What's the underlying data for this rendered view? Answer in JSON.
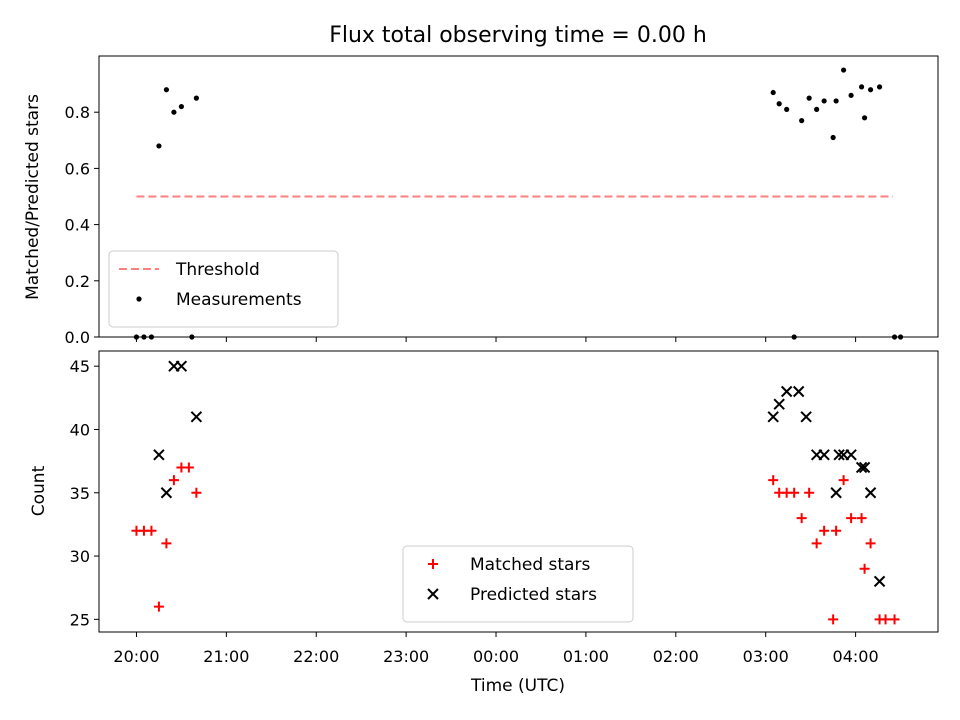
{
  "chart_data": {
    "title": "Flux total observing time = 0.00 h",
    "x_axis": {
      "label": "Time (UTC)",
      "unit": "minutes after 20:00 UTC",
      "ticks": [
        {
          "value": 0,
          "label": "20:00"
        },
        {
          "value": 60,
          "label": "21:00"
        },
        {
          "value": 120,
          "label": "22:00"
        },
        {
          "value": 180,
          "label": "23:00"
        },
        {
          "value": 240,
          "label": "00:00"
        },
        {
          "value": 300,
          "label": "01:00"
        },
        {
          "value": 360,
          "label": "02:00"
        },
        {
          "value": 420,
          "label": "03:00"
        },
        {
          "value": 480,
          "label": "04:00"
        }
      ],
      "xlim": [
        -25,
        535
      ]
    },
    "charts": [
      {
        "type": "scatter",
        "ylabel": "Matched/Predicted stars",
        "ylim": [
          0,
          1.0
        ],
        "yticks": [
          0.0,
          0.2,
          0.4,
          0.6,
          0.8
        ],
        "ytick_labels": [
          "0.0",
          "0.2",
          "0.4",
          "0.6",
          "0.8"
        ],
        "legend": {
          "placement": "lower-left"
        },
        "threshold": {
          "name": "Threshold",
          "y": 0.5,
          "x_range": [
            0,
            505
          ],
          "color": "#ff7f7f",
          "style": "dashed"
        },
        "series": [
          {
            "name": "Measurements",
            "color": "#000000",
            "marker": "dot",
            "points": [
              [
                0,
                0.0
              ],
              [
                5,
                0.0
              ],
              [
                10,
                0.0
              ],
              [
                15,
                0.68
              ],
              [
                20,
                0.88
              ],
              [
                25,
                0.8
              ],
              [
                30,
                0.82
              ],
              [
                40,
                0.85
              ],
              [
                37,
                0.0
              ],
              [
                425,
                0.87
              ],
              [
                429,
                0.83
              ],
              [
                434,
                0.81
              ],
              [
                439,
                0.0
              ],
              [
                444,
                0.77
              ],
              [
                449,
                0.85
              ],
              [
                454,
                0.81
              ],
              [
                459,
                0.84
              ],
              [
                465,
                0.71
              ],
              [
                467,
                0.84
              ],
              [
                472,
                0.95
              ],
              [
                477,
                0.86
              ],
              [
                484,
                0.89
              ],
              [
                486,
                0.78
              ],
              [
                490,
                0.88
              ],
              [
                496,
                0.89
              ],
              [
                506,
                0.0
              ],
              [
                510,
                0.0
              ]
            ]
          }
        ]
      },
      {
        "type": "scatter",
        "ylabel": "Count",
        "ylim": [
          24,
          46.2
        ],
        "yticks": [
          25,
          30,
          35,
          40,
          45
        ],
        "ytick_labels": [
          "25",
          "30",
          "35",
          "40",
          "45"
        ],
        "legend": {
          "placement": "lower-center"
        },
        "series": [
          {
            "name": "Matched stars",
            "color": "#ff0000",
            "marker": "plus",
            "points": [
              [
                0,
                32
              ],
              [
                5,
                32
              ],
              [
                10,
                32
              ],
              [
                15,
                26
              ],
              [
                20,
                31
              ],
              [
                25,
                36
              ],
              [
                30,
                37
              ],
              [
                35,
                37
              ],
              [
                40,
                35
              ],
              [
                425,
                36
              ],
              [
                429,
                35
              ],
              [
                434,
                35
              ],
              [
                439,
                35
              ],
              [
                444,
                33
              ],
              [
                449,
                35
              ],
              [
                454,
                31
              ],
              [
                459,
                32
              ],
              [
                465,
                25
              ],
              [
                467,
                32
              ],
              [
                472,
                36
              ],
              [
                477,
                33
              ],
              [
                484,
                33
              ],
              [
                486,
                29
              ],
              [
                490,
                31
              ],
              [
                496,
                25
              ],
              [
                500,
                25
              ],
              [
                506,
                25
              ]
            ]
          },
          {
            "name": "Predicted stars",
            "color": "#000000",
            "marker": "x",
            "points": [
              [
                15,
                38
              ],
              [
                20,
                35
              ],
              [
                25,
                45
              ],
              [
                30,
                45
              ],
              [
                40,
                41
              ],
              [
                425,
                41
              ],
              [
                429,
                42
              ],
              [
                434,
                43
              ],
              [
                442,
                43
              ],
              [
                447,
                41
              ],
              [
                454,
                38
              ],
              [
                459,
                38
              ],
              [
                467,
                35
              ],
              [
                469,
                38
              ],
              [
                472,
                38
              ],
              [
                477,
                38
              ],
              [
                484,
                37
              ],
              [
                486,
                37
              ],
              [
                490,
                35
              ],
              [
                496,
                28
              ]
            ]
          }
        ]
      }
    ]
  }
}
